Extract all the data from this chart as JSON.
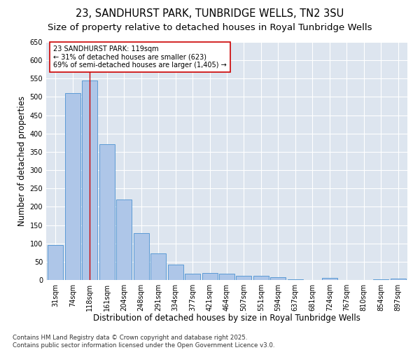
{
  "title1": "23, SANDHURST PARK, TUNBRIDGE WELLS, TN2 3SU",
  "title2": "Size of property relative to detached houses in Royal Tunbridge Wells",
  "xlabel": "Distribution of detached houses by size in Royal Tunbridge Wells",
  "ylabel": "Number of detached properties",
  "categories": [
    "31sqm",
    "74sqm",
    "118sqm",
    "161sqm",
    "204sqm",
    "248sqm",
    "291sqm",
    "334sqm",
    "377sqm",
    "421sqm",
    "464sqm",
    "507sqm",
    "551sqm",
    "594sqm",
    "637sqm",
    "681sqm",
    "724sqm",
    "767sqm",
    "810sqm",
    "854sqm",
    "897sqm"
  ],
  "values": [
    95,
    510,
    545,
    370,
    220,
    128,
    72,
    42,
    18,
    19,
    18,
    12,
    12,
    8,
    2,
    0,
    5,
    0,
    0,
    2,
    3
  ],
  "bar_color": "#aec6e8",
  "bar_edge_color": "#5b9bd5",
  "vline_x_index": 2,
  "vline_color": "#cc0000",
  "annotation_line1": "23 SANDHURST PARK: 119sqm",
  "annotation_line2": "← 31% of detached houses are smaller (623)",
  "annotation_line3": "69% of semi-detached houses are larger (1,405) →",
  "annotation_box_color": "#cc0000",
  "ylim": [
    0,
    650
  ],
  "yticks": [
    0,
    50,
    100,
    150,
    200,
    250,
    300,
    350,
    400,
    450,
    500,
    550,
    600,
    650
  ],
  "bg_color": "#dde5ef",
  "grid_color": "#ffffff",
  "footer_line1": "Contains HM Land Registry data © Crown copyright and database right 2025.",
  "footer_line2": "Contains public sector information licensed under the Open Government Licence v3.0.",
  "title1_fontsize": 10.5,
  "title2_fontsize": 9.5,
  "xlabel_fontsize": 8.5,
  "ylabel_fontsize": 8.5,
  "tick_fontsize": 7,
  "annotation_fontsize": 7,
  "footer_fontsize": 6.2
}
